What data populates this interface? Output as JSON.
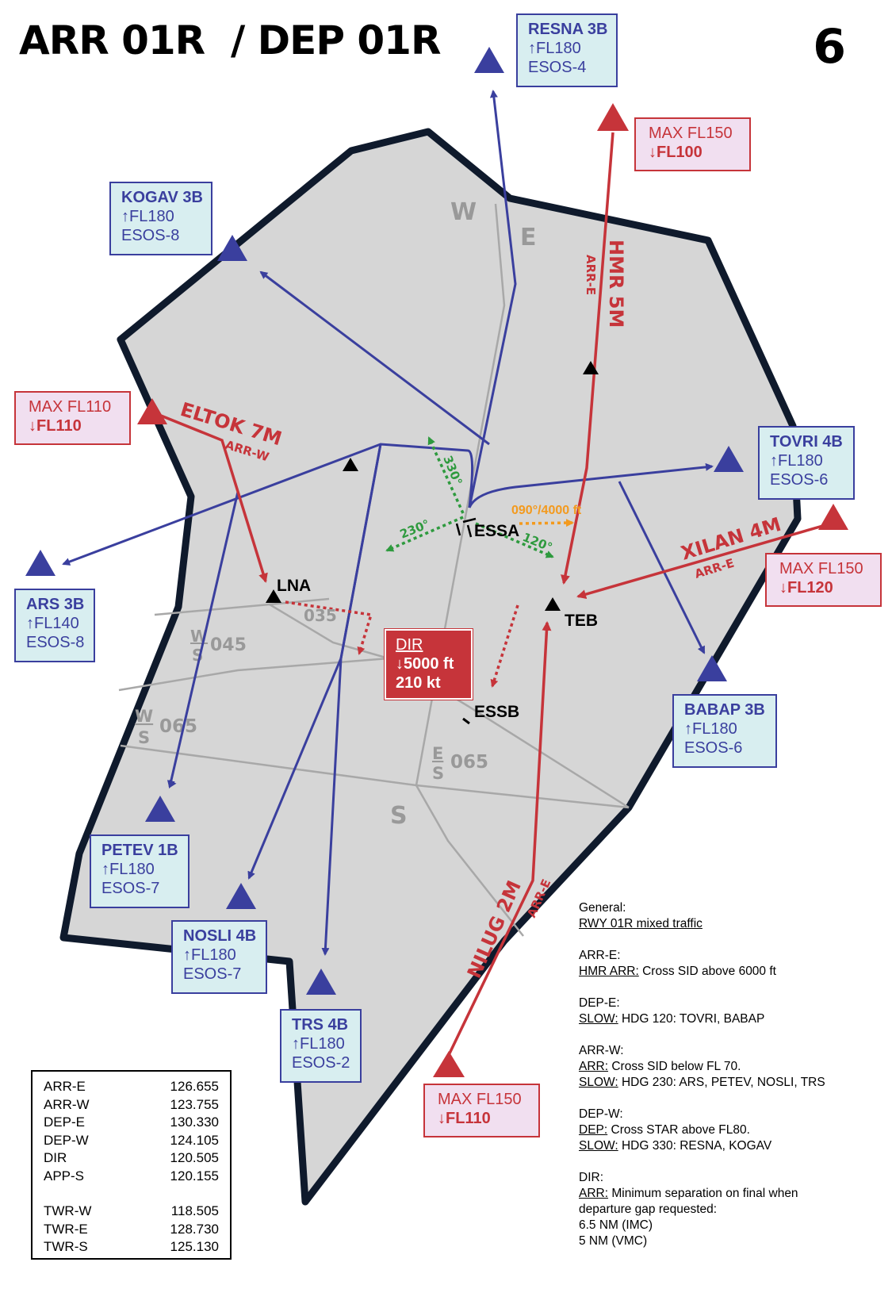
{
  "header": {
    "title": "ARR 01R  / DEP 01R",
    "page_number": "6"
  },
  "colors": {
    "sid_blue": "#3a3f9e",
    "star_red": "#c6343a",
    "area_gray": "#d6d6d6",
    "border_navy": "#0f1a2c",
    "heading_green": "#2e9a3e",
    "heading_orange": "#f39a1e"
  },
  "sectors": {
    "w": "W",
    "e": "E",
    "s": "S"
  },
  "sector_splits": [
    {
      "top": "W",
      "bottom": "S",
      "hdg": "045"
    },
    {
      "top": "W",
      "bottom": "S",
      "hdg": "065"
    },
    {
      "top": "E",
      "bottom": "S",
      "hdg": "065"
    }
  ],
  "airports": {
    "essa": "ESSA",
    "essb": "ESSB"
  },
  "fixes": {
    "lna": "LNA",
    "teb": "TEB",
    "lna_radial": "035"
  },
  "headings": {
    "h330": "330°",
    "h230": "230°",
    "h120": "120°",
    "h090": "090°/4000 ft"
  },
  "departures": [
    {
      "name": "RESNA 3B",
      "alt": "↑FL180",
      "freq": "ESOS-4"
    },
    {
      "name": "KOGAV 3B",
      "alt": "↑FL180",
      "freq": "ESOS-8"
    },
    {
      "name": "TOVRI 4B",
      "alt": "↑FL180",
      "freq": "ESOS-6"
    },
    {
      "name": "ARS 3B",
      "alt": "↑FL140",
      "freq": "ESOS-8"
    },
    {
      "name": "BABAP 3B",
      "alt": "↑FL180",
      "freq": "ESOS-6"
    },
    {
      "name": "PETEV 1B",
      "alt": "↑FL180",
      "freq": "ESOS-7"
    },
    {
      "name": "NOSLI 4B",
      "alt": "↑FL180",
      "freq": "ESOS-7"
    },
    {
      "name": "TRS 4B",
      "alt": "↑FL180",
      "freq": "ESOS-2"
    }
  ],
  "arrivals": [
    {
      "name": "HMR 5M",
      "sector": "ARR-E",
      "max": "MAX FL150",
      "level": "↓FL100"
    },
    {
      "name": "ELTOK 7M",
      "sector": "ARR-W",
      "max": "MAX FL110",
      "level": "↓FL110"
    },
    {
      "name": "XILAN 4M",
      "sector": "ARR-E",
      "max": "MAX FL150",
      "level": "↓FL120"
    },
    {
      "name": "NILUG 2M",
      "sector": "ARR-E",
      "max": "MAX FL150",
      "level": "↓FL110"
    }
  ],
  "dir_box": {
    "label": "DIR",
    "alt": "↓5000 ft",
    "speed": "210 kt"
  },
  "frequencies": [
    {
      "name": "ARR-E",
      "mhz": "126.655"
    },
    {
      "name": "ARR-W",
      "mhz": "123.755"
    },
    {
      "name": "DEP-E",
      "mhz": "130.330"
    },
    {
      "name": "DEP-W",
      "mhz": "124.105"
    },
    {
      "name": "DIR",
      "mhz": "120.505"
    },
    {
      "name": "APP-S",
      "mhz": "120.155"
    },
    {
      "name": "TWR-W",
      "mhz": "118.505"
    },
    {
      "name": "TWR-E",
      "mhz": "128.730"
    },
    {
      "name": "TWR-S",
      "mhz": "125.130"
    }
  ],
  "notes": {
    "general_title": "General:",
    "general_line": "RWY 01R mixed traffic",
    "arre_title": "ARR-E:",
    "arre_key": "HMR ARR:",
    "arre_text": " Cross SID above 6000 ft",
    "depe_title": "DEP-E:",
    "depe_key": "SLOW:",
    "depe_text": " HDG 120: TOVRI, BABAP",
    "arrw_title": "ARR-W:",
    "arrw_key1": "ARR:",
    "arrw_text1": " Cross SID below FL 70.",
    "arrw_key2": "SLOW:",
    "arrw_text2": " HDG 230: ARS, PETEV, NOSLI, TRS",
    "depw_title": "DEP-W:",
    "depw_key1": "DEP:",
    "depw_text1": " Cross STAR above FL80.",
    "depw_key2": "SLOW:",
    "depw_text2": " HDG 330: RESNA, KOGAV",
    "dir_title": "DIR:",
    "dir_key": "ARR:",
    "dir_text1": " Minimum separation on final when",
    "dir_text2": "departure gap requested:",
    "dir_text3": "6.5 NM (IMC)",
    "dir_text4": "5 NM (VMC)"
  }
}
